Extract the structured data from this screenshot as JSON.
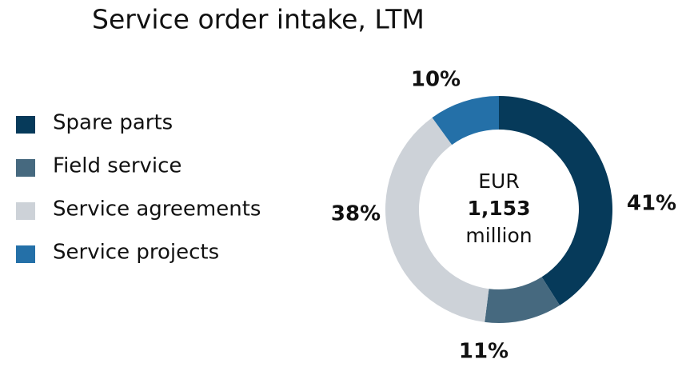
{
  "chart_data": {
    "type": "donut",
    "title": "Service order intake, LTM",
    "categories": [
      "Spare parts",
      "Field service",
      "Service agreements",
      "Service projects"
    ],
    "values": [
      41,
      11,
      38,
      10
    ],
    "value_labels": [
      "41%",
      "11%",
      "38%",
      "10%"
    ],
    "colors": [
      "#063a5a",
      "#46697f",
      "#cdd2d8",
      "#2470a8"
    ],
    "center_text": [
      "EUR",
      "1,153",
      "million"
    ],
    "legend": "left"
  }
}
